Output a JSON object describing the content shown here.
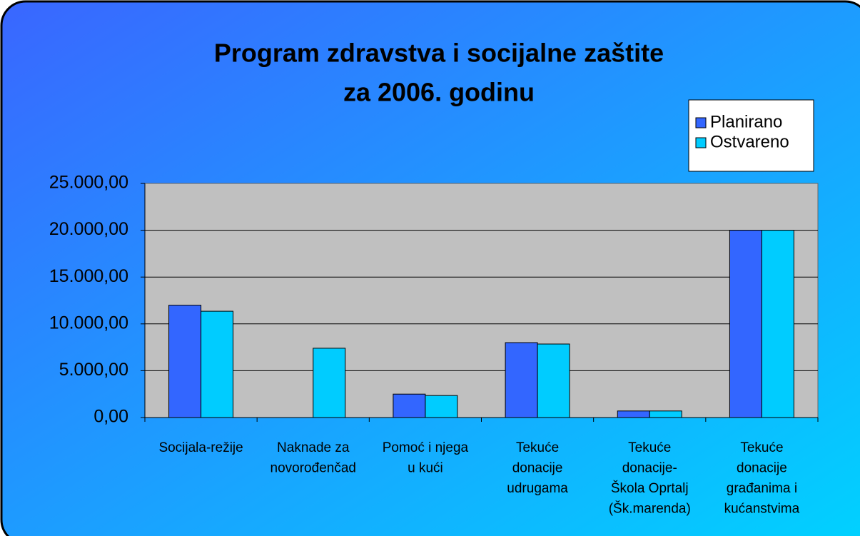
{
  "chart_data": {
    "type": "bar",
    "title": [
      "Program zdravstva i socijalne zaštite",
      "za 2006. godinu"
    ],
    "categories": [
      [
        "Socijala-režije"
      ],
      [
        "Naknade za",
        "novorođenčad"
      ],
      [
        "Pomoć i njega",
        "u kući"
      ],
      [
        "Tekuće",
        "donacije",
        "udrugama"
      ],
      [
        "Tekuće",
        "donacije-",
        "Škola Oprtalj",
        "(Šk.marenda)"
      ],
      [
        "Tekuće",
        "donacije",
        "građanima i",
        "kućanstvima"
      ]
    ],
    "series": [
      {
        "name": "Planirano",
        "color": "#3366ff",
        "values": [
          12000,
          0,
          2500,
          8000,
          700,
          20000
        ]
      },
      {
        "name": "Ostvareno",
        "color": "#00ccff",
        "values": [
          11350,
          7400,
          2350,
          7850,
          700,
          20000
        ]
      }
    ],
    "ylim": [
      0,
      25000
    ],
    "yticks": [
      {
        "value": 0,
        "label": "0,00"
      },
      {
        "value": 5000,
        "label": "5.000,00"
      },
      {
        "value": 10000,
        "label": "10.000,00"
      },
      {
        "value": 15000,
        "label": "15.000,00"
      },
      {
        "value": 20000,
        "label": "20.000,00"
      },
      {
        "value": 25000,
        "label": "25.000,00"
      }
    ],
    "grid": true,
    "legend": "top-right"
  }
}
